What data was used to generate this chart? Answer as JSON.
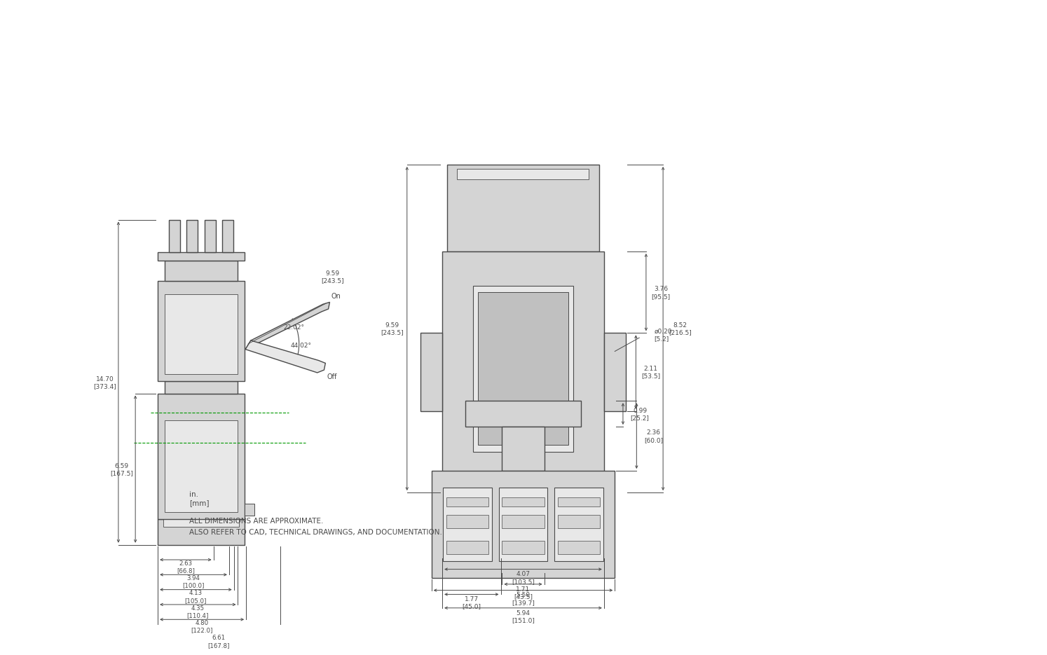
{
  "bg_color": "#ffffff",
  "line_color": "#4a4a4a",
  "green_color": "#009900",
  "fill_color": "#d4d4d4",
  "fill_color2": "#e8e8e8",
  "fill_color3": "#c0c0c0",
  "note_line1": "ALL DIMENSIONS ARE APPROXIMATE.",
  "note_line2": "ALSO REFER TO CAD, TECHNICAL DRAWINGS, AND DOCUMENTATION.",
  "units_in": "in.",
  "units_mm": "[mm]",
  "dim_1470": "14.70\n[373.4]",
  "dim_659": "6.59\n[167.5]",
  "dim_on": "On",
  "dim_off": "Off",
  "dim_angle1": "22.02°",
  "dim_angle2": "44.02°",
  "dim_959": "9.59\n[243.5]",
  "dim_407": "4.07\n[103.5]",
  "dim_171": "1.71\n[43.5]",
  "dim_852": "8.52\n[216.5]",
  "dim_hole": "ø0.20\n[5.2]",
  "dim_376": "3.76\n[95.5]",
  "dim_211": "2.11\n[53.5]",
  "dim_177": "1.77\n[45.0]",
  "dim_594": "5.94\n[151.0]",
  "dim_263": "2.63\n[66.8]",
  "dim_394": "3.94\n[100.0]",
  "dim_413": "4.13\n[105.0]",
  "dim_435": "4.35\n[110.4]",
  "dim_480": "4.80\n[122.0]",
  "dim_661": "6.61\n[167.8]",
  "dim_550": "5.50\n[139.7]",
  "dim_236": "2.36\n[60.0]",
  "dim_099": "0.99\n[25.2]"
}
